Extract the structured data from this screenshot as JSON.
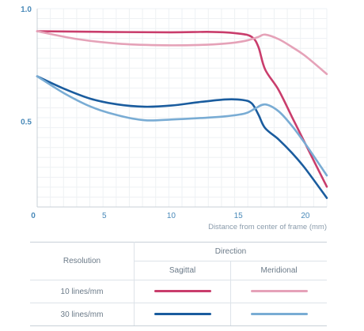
{
  "chart_data": {
    "type": "line",
    "title": "",
    "xlabel": "Distance from center of frame (mm)",
    "ylabel": "",
    "xlim": [
      0,
      21.6
    ],
    "ylim": [
      0.12,
      1.0
    ],
    "x_ticks": [
      "0",
      "5",
      "10",
      "15",
      "20"
    ],
    "y_ticks": [
      "1.0",
      "0.5"
    ],
    "grid": true,
    "series": [
      {
        "name": "10 lines/mm Sagittal",
        "color": "#c93d6c",
        "width": 2.6,
        "points": [
          [
            0,
            0.9
          ],
          [
            5,
            0.897
          ],
          [
            10,
            0.895
          ],
          [
            13,
            0.897
          ],
          [
            15,
            0.89
          ],
          [
            16,
            0.875
          ],
          [
            16.5,
            0.83
          ],
          [
            17,
            0.73
          ],
          [
            18,
            0.64
          ],
          [
            19,
            0.52
          ],
          [
            20,
            0.4
          ],
          [
            21.6,
            0.21
          ]
        ]
      },
      {
        "name": "10 lines/mm Meridional",
        "color": "#e5a2b8",
        "width": 2.6,
        "points": [
          [
            0,
            0.9
          ],
          [
            3,
            0.865
          ],
          [
            6,
            0.845
          ],
          [
            9,
            0.838
          ],
          [
            12,
            0.839
          ],
          [
            14,
            0.845
          ],
          [
            15.5,
            0.857
          ],
          [
            16.5,
            0.875
          ],
          [
            17,
            0.885
          ],
          [
            18,
            0.865
          ],
          [
            19,
            0.83
          ],
          [
            20,
            0.79
          ],
          [
            21.6,
            0.71
          ]
        ]
      },
      {
        "name": "30 lines/mm Sagittal",
        "color": "#1a5c9e",
        "width": 2.6,
        "points": [
          [
            0,
            0.7
          ],
          [
            2,
            0.645
          ],
          [
            4,
            0.6
          ],
          [
            6,
            0.575
          ],
          [
            8,
            0.565
          ],
          [
            10,
            0.57
          ],
          [
            12,
            0.585
          ],
          [
            14,
            0.597
          ],
          [
            15.3,
            0.595
          ],
          [
            16,
            0.58
          ],
          [
            16.5,
            0.53
          ],
          [
            17,
            0.47
          ],
          [
            18,
            0.42
          ],
          [
            19,
            0.36
          ],
          [
            20,
            0.29
          ],
          [
            21.6,
            0.16
          ]
        ]
      },
      {
        "name": "30 lines/mm Meridional",
        "color": "#79acd4",
        "width": 2.6,
        "points": [
          [
            0,
            0.7
          ],
          [
            2,
            0.625
          ],
          [
            4,
            0.565
          ],
          [
            6,
            0.527
          ],
          [
            8,
            0.505
          ],
          [
            10,
            0.508
          ],
          [
            12,
            0.514
          ],
          [
            14,
            0.522
          ],
          [
            15.5,
            0.535
          ],
          [
            16.2,
            0.555
          ],
          [
            17,
            0.575
          ],
          [
            18,
            0.545
          ],
          [
            19,
            0.48
          ],
          [
            20,
            0.4
          ],
          [
            21.6,
            0.26
          ]
        ]
      }
    ]
  },
  "legend": {
    "resolution_label": "Resolution",
    "direction_label": "Direction",
    "sagittal_label": "Sagittal",
    "meridional_label": "Meridional",
    "rows": [
      {
        "label": "10 lines/mm",
        "sagittal_color": "#c93d6c",
        "meridional_color": "#e5a2b8"
      },
      {
        "label": "30 lines/mm",
        "sagittal_color": "#1a5c9e",
        "meridional_color": "#79acd4"
      }
    ]
  }
}
